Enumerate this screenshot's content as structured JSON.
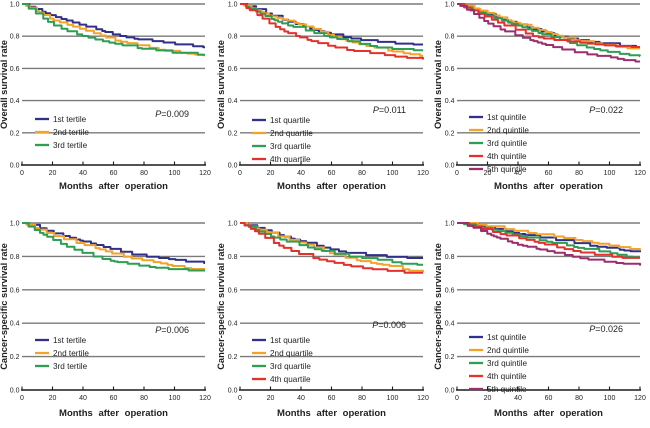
{
  "figure": {
    "background": "#ffffff",
    "grid_color": "#7a7a7a",
    "axis_color": "#1c1c1c",
    "text_color": "#1f1f1f",
    "x_axis_title": "Months after operation",
    "x_tick_labels": [
      "0",
      "20",
      "40",
      "60",
      "80",
      "100",
      "120"
    ],
    "y_tick_labels": [
      "0.0",
      "0.2",
      "0.4",
      "0.6",
      "0.8",
      "1.0"
    ]
  },
  "chart_data": [
    {
      "id": "overall-survival-tertiles",
      "type": "line",
      "subtype": "kaplan-meier-step",
      "row": 0,
      "col": 0,
      "title": "",
      "ylabel": "Overall survival rate",
      "xlabel": "Months after operation",
      "p_symbol": "P",
      "p_rest": "=0.009",
      "p_text": "P=0.009",
      "xlim": [
        0,
        120
      ],
      "ylim": [
        0.0,
        1.0
      ],
      "x_ticks": [
        0,
        20,
        40,
        60,
        80,
        100,
        120
      ],
      "y_ticks": [
        0.0,
        0.2,
        0.4,
        0.6,
        0.8,
        1.0
      ],
      "grid": "horizontal",
      "legend_position": "inside-lower-left",
      "x_months": [
        0,
        10,
        20,
        30,
        40,
        50,
        60,
        70,
        80,
        90,
        100,
        110,
        120
      ],
      "series": [
        {
          "name": "1st tertile",
          "color": "#31318b",
          "y": [
            1.0,
            0.965,
            0.925,
            0.895,
            0.865,
            0.84,
            0.81,
            0.79,
            0.775,
            0.765,
            0.75,
            0.74,
            0.73
          ]
        },
        {
          "name": "2nd tertile",
          "color": "#f5a22a",
          "y": [
            1.0,
            0.955,
            0.9,
            0.87,
            0.84,
            0.81,
            0.775,
            0.755,
            0.735,
            0.715,
            0.7,
            0.69,
            0.68
          ]
        },
        {
          "name": "3rd tertile",
          "color": "#2d9e53",
          "y": [
            1.0,
            0.935,
            0.87,
            0.83,
            0.8,
            0.775,
            0.755,
            0.735,
            0.72,
            0.71,
            0.695,
            0.69,
            0.68
          ]
        }
      ]
    },
    {
      "id": "overall-survival-quartiles",
      "type": "line",
      "subtype": "kaplan-meier-step",
      "row": 0,
      "col": 1,
      "title": "",
      "ylabel": "Overall survival rate",
      "xlabel": "Months after operation",
      "p_symbol": "P",
      "p_rest": "=0.011",
      "p_text": "P=0.011",
      "xlim": [
        0,
        120
      ],
      "ylim": [
        0.0,
        1.0
      ],
      "x_ticks": [
        0,
        20,
        40,
        60,
        80,
        100,
        120
      ],
      "y_ticks": [
        0.0,
        0.2,
        0.4,
        0.6,
        0.8,
        1.0
      ],
      "grid": "horizontal",
      "legend_position": "inside-lower-left",
      "x_months": [
        0,
        10,
        20,
        30,
        40,
        50,
        60,
        70,
        80,
        90,
        100,
        110,
        120
      ],
      "series": [
        {
          "name": "1st quartile",
          "color": "#31318b",
          "y": [
            1.0,
            0.97,
            0.93,
            0.895,
            0.865,
            0.835,
            0.81,
            0.79,
            0.775,
            0.765,
            0.755,
            0.75,
            0.745
          ]
        },
        {
          "name": "2nd quartile",
          "color": "#f5a22a",
          "y": [
            1.0,
            0.965,
            0.925,
            0.9,
            0.87,
            0.84,
            0.8,
            0.77,
            0.745,
            0.725,
            0.705,
            0.69,
            0.675
          ]
        },
        {
          "name": "3rd quartile",
          "color": "#2d9e53",
          "y": [
            1.0,
            0.955,
            0.91,
            0.87,
            0.845,
            0.815,
            0.79,
            0.77,
            0.75,
            0.73,
            0.72,
            0.715,
            0.71
          ]
        },
        {
          "name": "4th quartile",
          "color": "#e5312b",
          "y": [
            1.0,
            0.94,
            0.875,
            0.825,
            0.79,
            0.76,
            0.735,
            0.715,
            0.7,
            0.69,
            0.675,
            0.665,
            0.655
          ]
        }
      ]
    },
    {
      "id": "overall-survival-quintiles",
      "type": "line",
      "subtype": "kaplan-meier-step",
      "row": 0,
      "col": 2,
      "title": "",
      "ylabel": "Overall survival rate",
      "xlabel": "Months after operation",
      "p_symbol": "P",
      "p_rest": "=0.022",
      "p_text": "P=0.022",
      "xlim": [
        0,
        120
      ],
      "ylim": [
        0.0,
        1.0
      ],
      "x_ticks": [
        0,
        20,
        40,
        60,
        80,
        100,
        120
      ],
      "y_ticks": [
        0.0,
        0.2,
        0.4,
        0.6,
        0.8,
        1.0
      ],
      "grid": "horizontal",
      "legend_position": "inside-lower-left",
      "x_months": [
        0,
        10,
        20,
        30,
        40,
        50,
        60,
        70,
        80,
        90,
        100,
        110,
        120
      ],
      "series": [
        {
          "name": "1st quintile",
          "color": "#31318b",
          "y": [
            1.0,
            0.97,
            0.935,
            0.9,
            0.87,
            0.845,
            0.815,
            0.79,
            0.775,
            0.76,
            0.75,
            0.735,
            0.73
          ]
        },
        {
          "name": "2nd quintile",
          "color": "#f5a22a",
          "y": [
            1.0,
            0.975,
            0.945,
            0.91,
            0.875,
            0.85,
            0.82,
            0.79,
            0.77,
            0.755,
            0.74,
            0.725,
            0.72
          ]
        },
        {
          "name": "3rd quintile",
          "color": "#2d9e53",
          "y": [
            1.0,
            0.96,
            0.925,
            0.895,
            0.865,
            0.83,
            0.8,
            0.77,
            0.74,
            0.72,
            0.7,
            0.685,
            0.675
          ]
        },
        {
          "name": "4th quintile",
          "color": "#e5312b",
          "y": [
            1.0,
            0.955,
            0.915,
            0.87,
            0.835,
            0.8,
            0.78,
            0.77,
            0.76,
            0.75,
            0.74,
            0.735,
            0.73
          ]
        },
        {
          "name": "5th quintile",
          "color": "#9c2e6f",
          "y": [
            1.0,
            0.945,
            0.88,
            0.835,
            0.8,
            0.77,
            0.74,
            0.715,
            0.695,
            0.68,
            0.67,
            0.65,
            0.64
          ]
        }
      ]
    },
    {
      "id": "cancer-specific-survival-tertiles",
      "type": "line",
      "subtype": "kaplan-meier-step",
      "row": 1,
      "col": 0,
      "title": "",
      "ylabel": "Cancer-specific survival rate",
      "xlabel": "Months after operation",
      "p_symbol": "P",
      "p_rest": "=0.006",
      "p_text": "P=0.006",
      "xlim": [
        0,
        120
      ],
      "ylim": [
        0.0,
        1.0
      ],
      "x_ticks": [
        0,
        20,
        40,
        60,
        80,
        100,
        120
      ],
      "y_ticks": [
        0.0,
        0.2,
        0.4,
        0.6,
        0.8,
        1.0
      ],
      "grid": "horizontal",
      "legend_position": "inside-lower-left",
      "x_months": [
        0,
        10,
        20,
        30,
        40,
        50,
        60,
        70,
        80,
        90,
        100,
        110,
        120
      ],
      "series": [
        {
          "name": "1st tertile",
          "color": "#31318b",
          "y": [
            1.0,
            0.975,
            0.94,
            0.915,
            0.89,
            0.865,
            0.84,
            0.815,
            0.8,
            0.79,
            0.78,
            0.765,
            0.76
          ]
        },
        {
          "name": "2nd tertile",
          "color": "#f5a22a",
          "y": [
            1.0,
            0.965,
            0.925,
            0.895,
            0.87,
            0.845,
            0.815,
            0.79,
            0.775,
            0.76,
            0.74,
            0.725,
            0.72
          ]
        },
        {
          "name": "3rd tertile",
          "color": "#2d9e53",
          "y": [
            1.0,
            0.95,
            0.9,
            0.855,
            0.82,
            0.79,
            0.77,
            0.755,
            0.74,
            0.73,
            0.72,
            0.715,
            0.715
          ]
        }
      ]
    },
    {
      "id": "cancer-specific-survival-quartiles",
      "type": "line",
      "subtype": "kaplan-meier-step",
      "row": 1,
      "col": 1,
      "title": "",
      "ylabel": "Cancer-specific survival rate",
      "xlabel": "Months after operation",
      "p_symbol": "P",
      "p_rest": "=0.006",
      "p_text": "P=0.006",
      "xlim": [
        0,
        120
      ],
      "ylim": [
        0.0,
        1.0
      ],
      "x_ticks": [
        0,
        20,
        40,
        60,
        80,
        100,
        120
      ],
      "y_ticks": [
        0.0,
        0.2,
        0.4,
        0.6,
        0.8,
        1.0
      ],
      "grid": "horizontal",
      "legend_position": "inside-lower-left",
      "x_months": [
        0,
        10,
        20,
        30,
        40,
        50,
        60,
        70,
        80,
        90,
        100,
        110,
        120
      ],
      "series": [
        {
          "name": "1st quartile",
          "color": "#31318b",
          "y": [
            1.0,
            0.975,
            0.945,
            0.915,
            0.89,
            0.865,
            0.84,
            0.82,
            0.81,
            0.8,
            0.795,
            0.79,
            0.785
          ]
        },
        {
          "name": "2nd quartile",
          "color": "#f5a22a",
          "y": [
            1.0,
            0.97,
            0.935,
            0.905,
            0.88,
            0.85,
            0.815,
            0.79,
            0.77,
            0.755,
            0.74,
            0.715,
            0.705
          ]
        },
        {
          "name": "3rd quartile",
          "color": "#2d9e53",
          "y": [
            1.0,
            0.96,
            0.92,
            0.89,
            0.865,
            0.84,
            0.82,
            0.8,
            0.79,
            0.78,
            0.765,
            0.75,
            0.75
          ]
        },
        {
          "name": "4th quartile",
          "color": "#e5312b",
          "y": [
            1.0,
            0.95,
            0.89,
            0.845,
            0.81,
            0.785,
            0.765,
            0.745,
            0.73,
            0.72,
            0.71,
            0.7,
            0.7
          ]
        }
      ]
    },
    {
      "id": "cancer-specific-survival-quintiles",
      "type": "line",
      "subtype": "kaplan-meier-step",
      "row": 1,
      "col": 2,
      "title": "",
      "ylabel": "Cancer-specific survival rate",
      "xlabel": "Months after operation",
      "p_symbol": "P",
      "p_rest": "=0.026",
      "p_text": "P=0.026",
      "xlim": [
        0,
        120
      ],
      "ylim": [
        0.0,
        1.0
      ],
      "x_ticks": [
        0,
        20,
        40,
        60,
        80,
        100,
        120
      ],
      "y_ticks": [
        0.0,
        0.2,
        0.4,
        0.6,
        0.8,
        1.0
      ],
      "grid": "horizontal",
      "legend_position": "inside-lower-left",
      "x_months": [
        0,
        10,
        20,
        30,
        40,
        50,
        60,
        70,
        80,
        90,
        100,
        110,
        120
      ],
      "series": [
        {
          "name": "1st quintile",
          "color": "#31318b",
          "y": [
            1.0,
            0.99,
            0.975,
            0.955,
            0.935,
            0.92,
            0.905,
            0.89,
            0.875,
            0.86,
            0.85,
            0.835,
            0.825
          ]
        },
        {
          "name": "2nd quintile",
          "color": "#f5a22a",
          "y": [
            1.0,
            0.995,
            0.98,
            0.965,
            0.95,
            0.935,
            0.925,
            0.91,
            0.895,
            0.88,
            0.865,
            0.85,
            0.835
          ]
        },
        {
          "name": "3rd quintile",
          "color": "#2d9e53",
          "y": [
            1.0,
            0.985,
            0.965,
            0.945,
            0.925,
            0.905,
            0.885,
            0.87,
            0.85,
            0.835,
            0.82,
            0.8,
            0.79
          ]
        },
        {
          "name": "4th quintile",
          "color": "#e5312b",
          "y": [
            1.0,
            0.98,
            0.955,
            0.93,
            0.91,
            0.89,
            0.865,
            0.845,
            0.825,
            0.81,
            0.8,
            0.79,
            0.785
          ]
        },
        {
          "name": "5th quintile",
          "color": "#9c2e6f",
          "y": [
            1.0,
            0.975,
            0.935,
            0.9,
            0.87,
            0.85,
            0.83,
            0.81,
            0.79,
            0.775,
            0.765,
            0.755,
            0.745
          ]
        }
      ]
    }
  ]
}
